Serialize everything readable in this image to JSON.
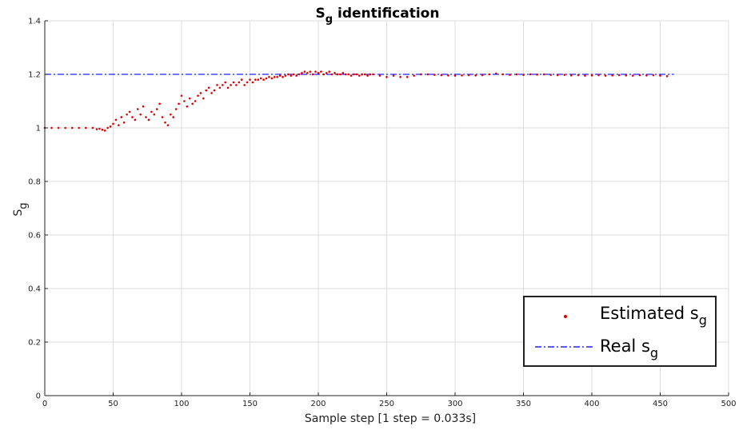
{
  "chart_data": {
    "type": "scatter",
    "title": "S",
    "title_subscript": "g",
    "title_suffix": " identification",
    "xlabel": "Sample step [1 step = 0.033s]",
    "ylabel": "S",
    "ylabel_subscript": "g",
    "xlim": [
      0,
      500
    ],
    "ylim": [
      0,
      1.4
    ],
    "xticks": [
      0,
      50,
      100,
      150,
      200,
      250,
      300,
      350,
      400,
      450,
      500
    ],
    "yticks": [
      0,
      0.2,
      0.4,
      0.6,
      0.8,
      1,
      1.2,
      1.4
    ],
    "xtick_labels": [
      "0",
      "50",
      "100",
      "150",
      "200",
      "250",
      "300",
      "350",
      "400",
      "450",
      "500"
    ],
    "ytick_labels": [
      "0",
      "0.2",
      "0.4",
      "0.6",
      "0.8",
      "1",
      "1.2",
      "1.4"
    ],
    "grid": true,
    "legend_position": "bottom-right",
    "colors": {
      "estimated": "#e00000",
      "real": "#2020ff"
    },
    "series": [
      {
        "name": "Estimated s",
        "name_subscript": "g",
        "style": "dots",
        "x": [
          0,
          5,
          10,
          15,
          20,
          25,
          30,
          35,
          38,
          40,
          42,
          44,
          46,
          48,
          50,
          52,
          54,
          56,
          58,
          60,
          62,
          64,
          66,
          68,
          70,
          72,
          74,
          76,
          78,
          80,
          82,
          84,
          86,
          88,
          90,
          92,
          94,
          96,
          98,
          100,
          102,
          104,
          106,
          108,
          110,
          112,
          114,
          116,
          118,
          120,
          122,
          124,
          126,
          128,
          130,
          132,
          134,
          136,
          138,
          140,
          142,
          144,
          146,
          148,
          150,
          152,
          154,
          156,
          158,
          160,
          162,
          164,
          166,
          168,
          170,
          172,
          174,
          176,
          178,
          180,
          182,
          184,
          186,
          188,
          190,
          192,
          194,
          196,
          198,
          200,
          202,
          204,
          206,
          208,
          210,
          212,
          214,
          216,
          218,
          220,
          222,
          224,
          226,
          228,
          230,
          232,
          234,
          236,
          238,
          240,
          245,
          250,
          255,
          260,
          265,
          270,
          275,
          280,
          285,
          290,
          295,
          300,
          305,
          310,
          315,
          320,
          325,
          330,
          335,
          340,
          345,
          350,
          355,
          360,
          365,
          370,
          375,
          380,
          385,
          390,
          395,
          400,
          405,
          410,
          415,
          420,
          425,
          430,
          435,
          440,
          445,
          450,
          455
        ],
        "y": [
          1.0,
          1.0,
          1.0,
          1.0,
          1.0,
          1.0,
          1.0,
          1.0,
          0.995,
          0.997,
          0.993,
          0.99,
          1.0,
          1.005,
          1.015,
          1.03,
          1.01,
          1.04,
          1.02,
          1.05,
          1.06,
          1.04,
          1.03,
          1.07,
          1.05,
          1.08,
          1.04,
          1.03,
          1.06,
          1.05,
          1.07,
          1.09,
          1.04,
          1.02,
          1.01,
          1.05,
          1.04,
          1.07,
          1.09,
          1.12,
          1.1,
          1.08,
          1.11,
          1.09,
          1.1,
          1.12,
          1.13,
          1.11,
          1.14,
          1.15,
          1.13,
          1.14,
          1.16,
          1.15,
          1.16,
          1.17,
          1.15,
          1.16,
          1.17,
          1.16,
          1.17,
          1.18,
          1.16,
          1.17,
          1.18,
          1.17,
          1.18,
          1.18,
          1.185,
          1.18,
          1.185,
          1.19,
          1.185,
          1.19,
          1.19,
          1.195,
          1.19,
          1.195,
          1.2,
          1.195,
          1.2,
          1.195,
          1.2,
          1.205,
          1.21,
          1.205,
          1.21,
          1.2,
          1.21,
          1.205,
          1.21,
          1.2,
          1.205,
          1.21,
          1.2,
          1.205,
          1.2,
          1.2,
          1.205,
          1.2,
          1.2,
          1.195,
          1.2,
          1.2,
          1.195,
          1.2,
          1.2,
          1.195,
          1.2,
          1.2,
          1.195,
          1.19,
          1.195,
          1.19,
          1.19,
          1.195,
          1.2,
          1.2,
          1.198,
          1.197,
          1.196,
          1.195,
          1.196,
          1.197,
          1.196,
          1.197,
          1.2,
          1.203,
          1.2,
          1.198,
          1.2,
          1.198,
          1.2,
          1.199,
          1.2,
          1.198,
          1.197,
          1.198,
          1.196,
          1.197,
          1.195,
          1.196,
          1.197,
          1.195,
          1.196,
          1.197,
          1.196,
          1.195,
          1.197,
          1.196,
          1.197,
          1.195,
          1.193
        ]
      },
      {
        "name": "Real s",
        "name_subscript": "g",
        "style": "dash-dot",
        "x": [
          0,
          460
        ],
        "y": [
          1.2,
          1.2
        ]
      }
    ]
  }
}
